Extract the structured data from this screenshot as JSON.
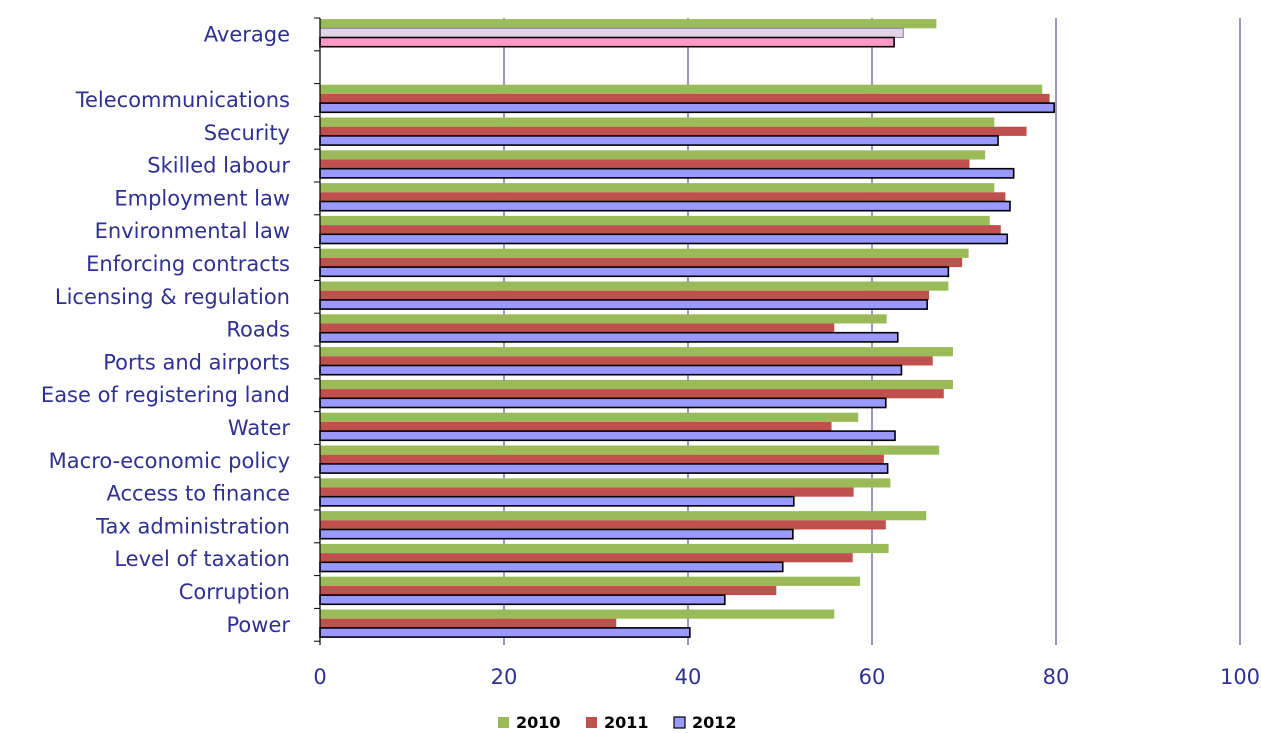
{
  "chart_data": {
    "type": "bar",
    "orientation": "horizontal",
    "categories": [
      "Average",
      "",
      "Telecommunications",
      "Security",
      "Skilled labour",
      "Employment law",
      "Environmental law",
      "Enforcing contracts",
      "Licensing & regulation",
      "Roads",
      "Ports and airports",
      "Ease of registering land",
      "Water",
      "Macro-economic policy",
      "Access to finance",
      "Tax administration",
      "Level of taxation",
      "Corruption",
      "Power"
    ],
    "series": [
      {
        "name": "2010",
        "color": "#9bbb59",
        "values": [
          67.0,
          null,
          78.5,
          73.3,
          72.3,
          73.3,
          72.8,
          70.5,
          68.3,
          61.6,
          68.8,
          68.8,
          58.5,
          67.3,
          62.0,
          65.9,
          61.8,
          58.7,
          55.9
        ]
      },
      {
        "name": "2011",
        "color": "#c0504d",
        "values": [
          63.4,
          null,
          79.3,
          76.8,
          70.6,
          74.5,
          74.0,
          69.8,
          66.2,
          55.9,
          66.6,
          67.8,
          55.6,
          61.3,
          58.0,
          61.5,
          57.9,
          49.6,
          32.2
        ]
      },
      {
        "name": "2012",
        "color": "#9999ff",
        "values": [
          62.4,
          null,
          79.8,
          73.7,
          75.4,
          75.0,
          74.7,
          68.3,
          66.0,
          62.8,
          63.2,
          61.5,
          62.5,
          61.7,
          51.5,
          51.4,
          50.3,
          44.0,
          40.2
        ]
      }
    ],
    "average_colors": [
      "#9bbb59",
      "#e3d3e4",
      "#ff99cc"
    ],
    "xlim": [
      0,
      100
    ],
    "xticks": [
      "0",
      "20",
      "40",
      "60",
      "80",
      "100"
    ],
    "grid": "vertical",
    "legend_position": "bottom",
    "title": "",
    "xlabel": "",
    "ylabel": ""
  }
}
